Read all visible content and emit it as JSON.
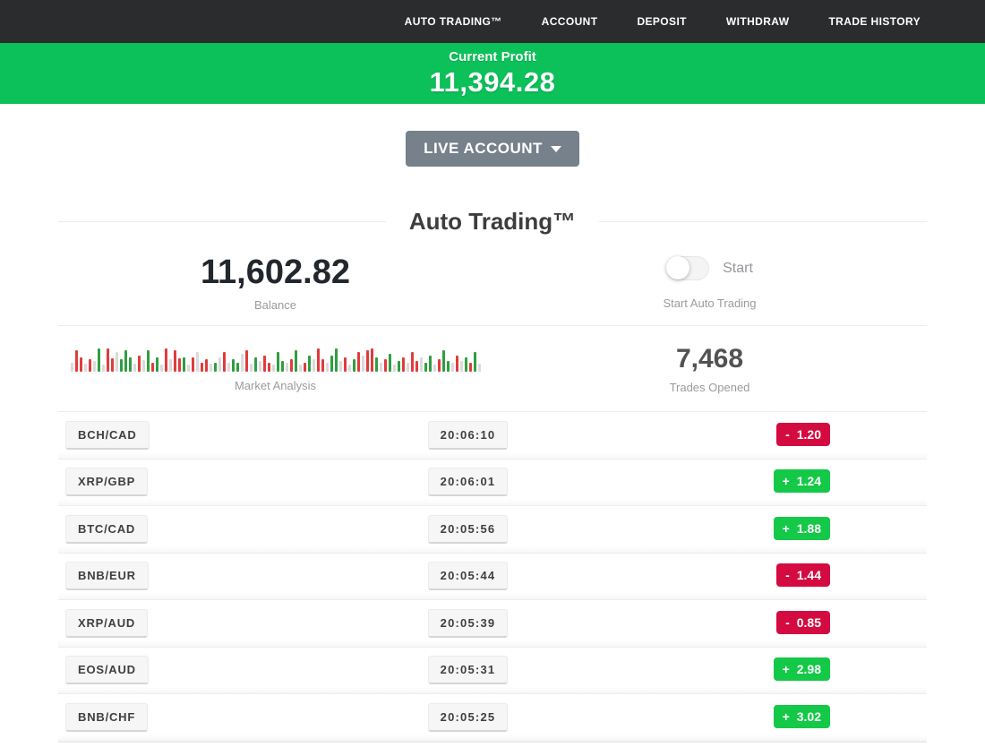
{
  "nav": {
    "items": [
      {
        "label": "AUTO TRADING™"
      },
      {
        "label": "ACCOUNT"
      },
      {
        "label": "DEPOSIT"
      },
      {
        "label": "WITHDRAW"
      },
      {
        "label": "TRADE HISTORY"
      }
    ]
  },
  "profit_banner": {
    "label": "Current Profit",
    "value": "11,394.28"
  },
  "account_selector": {
    "label": "LIVE ACCOUNT"
  },
  "section_title": "Auto Trading™",
  "stats": {
    "balance": {
      "value": "11,602.82",
      "label": "Balance"
    },
    "auto_trading": {
      "toggle_label": "Start",
      "caption": "Start Auto Trading",
      "toggle_state": "off"
    },
    "market_analysis": {
      "label": "Market Analysis",
      "bar_colors": {
        "r": "#e03c3c",
        "g": "#2f9e41",
        "n": "#dadada"
      },
      "bars": [
        [
          "n",
          10
        ],
        [
          "r",
          24
        ],
        [
          "r",
          16
        ],
        [
          "n",
          9
        ],
        [
          "r",
          14
        ],
        [
          "n",
          12
        ],
        [
          "g",
          26
        ],
        [
          "n",
          8
        ],
        [
          "r",
          26
        ],
        [
          "r",
          15
        ],
        [
          "n",
          22
        ],
        [
          "g",
          14
        ],
        [
          "g",
          24
        ],
        [
          "g",
          16
        ],
        [
          "n",
          9
        ],
        [
          "r",
          18
        ],
        [
          "n",
          13
        ],
        [
          "g",
          24
        ],
        [
          "r",
          10
        ],
        [
          "g",
          16
        ],
        [
          "n",
          8
        ],
        [
          "r",
          26
        ],
        [
          "n",
          14
        ],
        [
          "r",
          24
        ],
        [
          "r",
          15
        ],
        [
          "g",
          16
        ],
        [
          "n",
          8
        ],
        [
          "r",
          16
        ],
        [
          "n",
          22
        ],
        [
          "r",
          10
        ],
        [
          "r",
          14
        ],
        [
          "n",
          9
        ],
        [
          "g",
          10
        ],
        [
          "n",
          16
        ],
        [
          "r",
          22
        ],
        [
          "n",
          10
        ],
        [
          "g",
          14
        ],
        [
          "g",
          10
        ],
        [
          "n",
          20
        ],
        [
          "r",
          24
        ],
        [
          "n",
          9
        ],
        [
          "g",
          16
        ],
        [
          "n",
          12
        ],
        [
          "r",
          18
        ],
        [
          "r",
          10
        ],
        [
          "n",
          8
        ],
        [
          "g",
          22
        ],
        [
          "g",
          12
        ],
        [
          "n",
          10
        ],
        [
          "r",
          14
        ],
        [
          "g",
          24
        ],
        [
          "n",
          8
        ],
        [
          "r",
          10
        ],
        [
          "g",
          18
        ],
        [
          "n",
          14
        ],
        [
          "r",
          26
        ],
        [
          "r",
          14
        ],
        [
          "n",
          10
        ],
        [
          "g",
          18
        ],
        [
          "g",
          26
        ],
        [
          "n",
          12
        ],
        [
          "r",
          16
        ],
        [
          "n",
          8
        ],
        [
          "g",
          14
        ],
        [
          "r",
          22
        ],
        [
          "n",
          18
        ],
        [
          "r",
          24
        ],
        [
          "r",
          26
        ],
        [
          "g",
          16
        ],
        [
          "n",
          10
        ],
        [
          "r",
          14
        ],
        [
          "g",
          20
        ],
        [
          "n",
          8
        ],
        [
          "g",
          12
        ],
        [
          "r",
          16
        ],
        [
          "n",
          10
        ],
        [
          "r",
          22
        ],
        [
          "r",
          12
        ],
        [
          "n",
          16
        ],
        [
          "g",
          10
        ],
        [
          "g",
          18
        ],
        [
          "n",
          8
        ],
        [
          "r",
          14
        ],
        [
          "g",
          24
        ],
        [
          "g",
          12
        ],
        [
          "n",
          10
        ],
        [
          "r",
          18
        ],
        [
          "n",
          12
        ],
        [
          "g",
          16
        ],
        [
          "r",
          10
        ],
        [
          "g",
          22
        ],
        [
          "n",
          9
        ]
      ]
    },
    "trades_opened": {
      "value": "7,468",
      "label": "Trades Opened"
    }
  },
  "trades": [
    {
      "pair": "BCH/CAD",
      "time": "20:06:10",
      "sign": "-",
      "value": "1.20",
      "type": "loss"
    },
    {
      "pair": "XRP/GBP",
      "time": "20:06:01",
      "sign": "+",
      "value": "1.24",
      "type": "win"
    },
    {
      "pair": "BTC/CAD",
      "time": "20:05:56",
      "sign": "+",
      "value": "1.88",
      "type": "win"
    },
    {
      "pair": "BNB/EUR",
      "time": "20:05:44",
      "sign": "-",
      "value": "1.44",
      "type": "loss"
    },
    {
      "pair": "XRP/AUD",
      "time": "20:05:39",
      "sign": "-",
      "value": "0.85",
      "type": "loss"
    },
    {
      "pair": "EOS/AUD",
      "time": "20:05:31",
      "sign": "+",
      "value": "2.98",
      "type": "win"
    },
    {
      "pair": "BNB/CHF",
      "time": "20:05:25",
      "sign": "+",
      "value": "3.02",
      "type": "win"
    }
  ],
  "colors": {
    "nav_dark": "#2b2c2d",
    "banner_green": "#0cc159",
    "badge_green": "#14c848",
    "badge_red": "#d40b40"
  }
}
